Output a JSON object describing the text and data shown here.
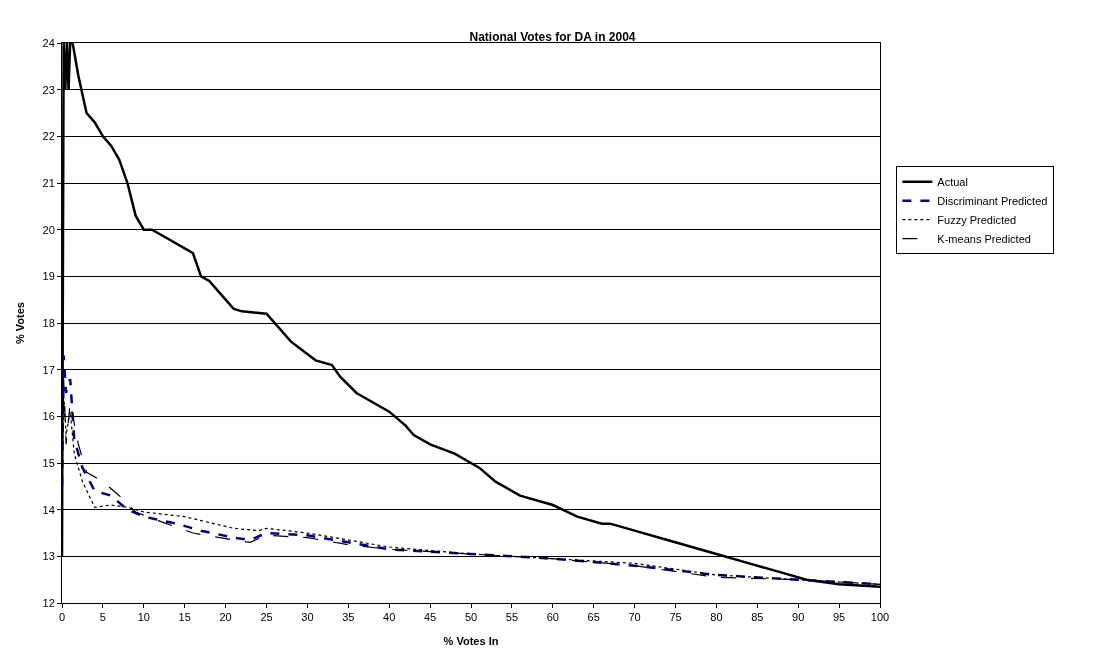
{
  "chart_data": {
    "type": "line",
    "title": "National Votes for DA in 2004",
    "xlabel": "% Votes In",
    "ylabel": "% Votes",
    "xlim": [
      0,
      100
    ],
    "xticks": [
      0,
      5,
      10,
      15,
      20,
      25,
      30,
      35,
      40,
      45,
      50,
      55,
      60,
      65,
      70,
      75,
      80,
      85,
      90,
      95,
      100
    ],
    "ylim": [
      12,
      24
    ],
    "yticks": [
      12,
      13,
      14,
      15,
      16,
      17,
      18,
      19,
      20,
      21,
      22,
      23,
      24
    ],
    "grid": "y",
    "legend": "right",
    "marker": "none",
    "series": [
      {
        "name": "Actual",
        "color": "#000000",
        "line_style": "solid",
        "x": [
          0,
          0.2,
          0.4,
          0.6,
          0.8,
          1,
          1.3,
          2,
          3,
          4,
          5,
          6,
          7,
          8,
          9,
          10,
          11,
          13,
          15,
          16,
          17,
          18,
          20,
          21,
          22,
          25,
          28,
          31,
          33,
          34,
          36,
          40,
          42,
          43,
          45,
          48,
          51,
          53,
          56,
          60,
          63,
          66,
          67,
          70,
          74,
          80,
          84,
          88,
          91,
          95,
          100
        ],
        "values": [
          13,
          24,
          23,
          24,
          23,
          24,
          24,
          23.3,
          22.5,
          22.3,
          22,
          21.8,
          21.5,
          21,
          20.3,
          20,
          20,
          19.8,
          19.6,
          19.5,
          19,
          18.9,
          18.5,
          18.3,
          18.25,
          18.2,
          17.6,
          17.2,
          17.1,
          16.85,
          16.5,
          16.1,
          15.8,
          15.6,
          15.4,
          15.2,
          14.9,
          14.6,
          14.3,
          14.1,
          13.85,
          13.7,
          13.7,
          13.55,
          13.35,
          13.05,
          12.85,
          12.65,
          12.5,
          12.4,
          12.35
        ]
      },
      {
        "name": "Discriminant Predicted",
        "color": "#000080",
        "line_style": "dashed",
        "x": [
          0,
          0.2,
          0.5,
          1,
          1.5,
          2.5,
          4,
          6,
          8,
          10,
          14,
          17,
          21,
          23,
          25,
          30,
          35,
          40,
          50,
          60,
          70,
          80,
          90,
          100
        ],
        "values": [
          14.5,
          17.3,
          16.5,
          16.8,
          15.5,
          14.9,
          14.4,
          14.3,
          14,
          13.85,
          13.7,
          13.55,
          13.4,
          13.35,
          13.5,
          13.45,
          13.3,
          13.15,
          13.05,
          12.95,
          12.8,
          12.6,
          12.5,
          12.4
        ]
      },
      {
        "name": "Fuzzy Predicted",
        "color": "#000000",
        "line_style": "dotted",
        "x": [
          0,
          0.2,
          0.5,
          1,
          1.5,
          2.5,
          4,
          6,
          8,
          10,
          15,
          21,
          24,
          25,
          30,
          35,
          40,
          50,
          60,
          70,
          80,
          90,
          100
        ],
        "values": [
          14.5,
          16.5,
          15.6,
          16.1,
          15.2,
          14.6,
          14.05,
          14.1,
          14.05,
          13.95,
          13.85,
          13.6,
          13.55,
          13.6,
          13.5,
          13.35,
          13.2,
          13.05,
          12.95,
          12.85,
          12.6,
          12.5,
          12.4
        ]
      },
      {
        "name": "K-means Predicted",
        "color": "#000000",
        "line_style": "longdash",
        "x": [
          0,
          0.2,
          0.5,
          1,
          2,
          3,
          5,
          7,
          9,
          12,
          16,
          21,
          23,
          25,
          30,
          35,
          40,
          50,
          60,
          70,
          80,
          90,
          100
        ],
        "values": [
          14.8,
          16.8,
          15.4,
          16.3,
          15.4,
          14.8,
          14.6,
          14.3,
          13.95,
          13.75,
          13.5,
          13.35,
          13.3,
          13.45,
          13.4,
          13.25,
          13.15,
          13.05,
          12.95,
          12.8,
          12.55,
          12.5,
          12.4
        ]
      }
    ]
  }
}
